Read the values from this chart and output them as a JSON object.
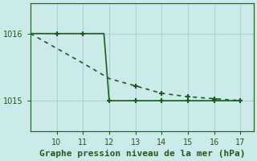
{
  "title": "Graphe pression niveau de la mer (hPa)",
  "background_color": "#cceaea",
  "line_color": "#1a5c1a",
  "grid_color": "#aad4d4",
  "solid_x": [
    9,
    10,
    11,
    11.8,
    12,
    13,
    14,
    15,
    16,
    17
  ],
  "solid_y": [
    1016.0,
    1016.0,
    1016.0,
    1016.0,
    1015.0,
    1015.0,
    1015.0,
    1015.0,
    1015.0,
    1015.0
  ],
  "dashed_x": [
    9,
    10,
    11,
    12,
    13,
    14,
    15,
    16,
    17
  ],
  "dashed_y": [
    1016.0,
    1015.78,
    1015.56,
    1015.33,
    1015.22,
    1015.11,
    1015.06,
    1015.03,
    1015.0
  ],
  "solid_markers_x": [
    10,
    11,
    12,
    13,
    14,
    15,
    16,
    17
  ],
  "solid_markers_y": [
    1016.0,
    1016.0,
    1015.0,
    1015.0,
    1015.0,
    1015.0,
    1015.0,
    1015.0
  ],
  "dashed_markers_x": [
    13,
    14,
    15,
    16,
    17
  ],
  "dashed_markers_y": [
    1015.22,
    1015.11,
    1015.06,
    1015.03,
    1015.0
  ],
  "xlim": [
    9,
    17.5
  ],
  "ylim": [
    1014.55,
    1016.45
  ],
  "yticks": [
    1015,
    1016
  ],
  "xticks": [
    10,
    11,
    12,
    13,
    14,
    15,
    16,
    17
  ],
  "title_fontsize": 8,
  "tick_fontsize": 7,
  "linewidth": 1.2,
  "marker": "+",
  "markersize": 4,
  "markeredgewidth": 1.5
}
